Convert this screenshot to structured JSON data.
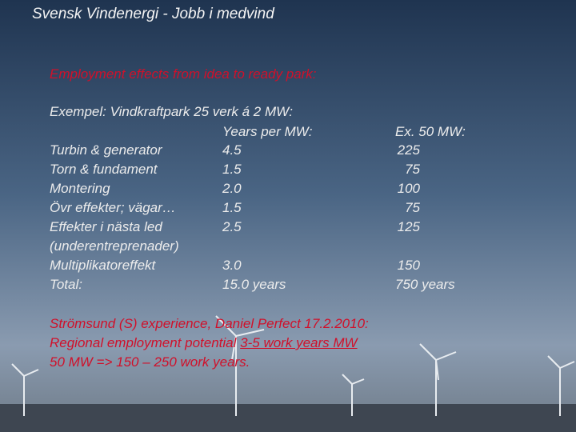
{
  "title": "Svensk Vindenergi - Jobb i  medvind",
  "subtitle": "Employment effects from idea to ready park:",
  "example": "Exempel: Vindkraftpark 25 verk á 2 MW:",
  "table": {
    "headers": [
      "Years per MW:",
      "Ex. 50 MW:"
    ],
    "rows": [
      {
        "label": [
          "Turbin & generator"
        ],
        "years": "4.5",
        "ex": "225"
      },
      {
        "label": [
          "Torn & fundament"
        ],
        "years": "1.5",
        "ex": "75"
      },
      {
        "label": [
          "Montering"
        ],
        "years": "2.0",
        "ex": "100"
      },
      {
        "label": [
          "Övr effekter; vägar…"
        ],
        "years": "1.5",
        "ex": "75"
      },
      {
        "label": [
          "Effekter i nästa led",
          "(underentreprenader)"
        ],
        "years": "2.5",
        "ex": "125"
      },
      {
        "label": [
          "Multiplikatoreffekt"
        ],
        "years": "3.0",
        "ex": "150"
      },
      {
        "label": [
          "Total:"
        ],
        "years": "15.0 years",
        "ex": "750 years"
      }
    ]
  },
  "footer": {
    "line1": "Strömsund (S) experience, Daniel Perfect 17.2.2010:",
    "line2_prefix": "Regional employment potential  ",
    "line2_underlined": "3-5 work years MW",
    "line3": "50 MW => 150 – 250 work years."
  }
}
